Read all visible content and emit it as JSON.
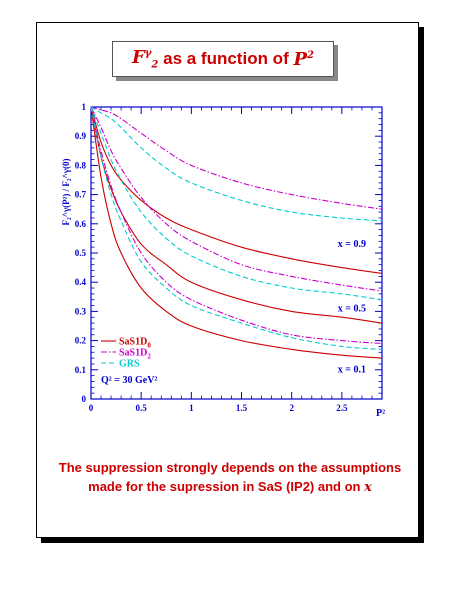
{
  "title": {
    "prefix": "F",
    "sup": "γ",
    "sub": "2",
    "middle": " as a function of ",
    "var": "P",
    "var_sup": "2"
  },
  "caption": {
    "text": "The suppression strongly depends on the assumptions made for the supression in SaS (IP2) and on ",
    "var": "x"
  },
  "colors": {
    "sas1d0": "#cc0000",
    "sas1d2": "#cc00cc",
    "grs": "#00cccc",
    "axis": "#0000cc",
    "label": "#0000cc"
  },
  "chart_data": {
    "type": "line",
    "xlabel": "P²",
    "ylabel": "F₂^γ(P²) / F₂^γ(0)",
    "xlim": [
      0,
      2.9
    ],
    "ylim": [
      0,
      1
    ],
    "xticks": [
      "0",
      "0.5",
      "1",
      "1.5",
      "2",
      "2.5"
    ],
    "yticks": [
      "0",
      "0.1",
      "0.2",
      "0.3",
      "0.4",
      "0.5",
      "0.6",
      "0.7",
      "0.8",
      "0.9",
      "1"
    ],
    "legend_position": "bottom-left",
    "legend": [
      {
        "label": "SaS1D",
        "sub": "0",
        "style": "solid",
        "color": "#cc0000"
      },
      {
        "label": "SaS1D",
        "sub": "2",
        "style": "dashdot",
        "color": "#cc00cc"
      },
      {
        "label": "GRS",
        "sub": "",
        "style": "dashed",
        "color": "#00cccc"
      }
    ],
    "annotation_q2": "Q² = 30 GeV²",
    "curve_labels": [
      {
        "text": "x = 0.9",
        "x": 2.6,
        "y": 0.52
      },
      {
        "text": "x = 0.5",
        "x": 2.6,
        "y": 0.3
      },
      {
        "text": "x = 0.1",
        "x": 2.6,
        "y": 0.09
      }
    ],
    "x": [
      0,
      0.1,
      0.2,
      0.3,
      0.5,
      0.75,
      1.0,
      1.5,
      2.0,
      2.5,
      2.9
    ],
    "series": [
      {
        "name": "SaS1D0",
        "group": "x = 0.9",
        "style": "solid",
        "values": [
          1.0,
          0.88,
          0.8,
          0.75,
          0.68,
          0.62,
          0.58,
          0.52,
          0.48,
          0.45,
          0.43
        ]
      },
      {
        "name": "SaS1D2",
        "group": "x = 0.9",
        "style": "dashdot",
        "values": [
          1.0,
          0.99,
          0.98,
          0.96,
          0.91,
          0.85,
          0.8,
          0.74,
          0.7,
          0.67,
          0.65
        ]
      },
      {
        "name": "GRS",
        "group": "x = 0.9",
        "style": "dashed",
        "values": [
          1.0,
          0.98,
          0.96,
          0.93,
          0.86,
          0.79,
          0.74,
          0.68,
          0.64,
          0.62,
          0.61
        ]
      },
      {
        "name": "SaS1D0",
        "group": "x = 0.5",
        "style": "solid",
        "values": [
          1.0,
          0.83,
          0.72,
          0.64,
          0.53,
          0.46,
          0.4,
          0.34,
          0.3,
          0.28,
          0.26
        ]
      },
      {
        "name": "SaS1D2",
        "group": "x = 0.5",
        "style": "dashdot",
        "values": [
          1.0,
          0.93,
          0.85,
          0.79,
          0.69,
          0.6,
          0.54,
          0.46,
          0.42,
          0.39,
          0.37
        ]
      },
      {
        "name": "GRS",
        "group": "x = 0.5",
        "style": "dashed",
        "values": [
          1.0,
          0.91,
          0.82,
          0.75,
          0.64,
          0.55,
          0.49,
          0.42,
          0.38,
          0.36,
          0.34
        ]
      },
      {
        "name": "SaS1D0",
        "group": "x = 0.1",
        "style": "solid",
        "values": [
          1.0,
          0.76,
          0.6,
          0.5,
          0.38,
          0.3,
          0.25,
          0.2,
          0.17,
          0.15,
          0.14
        ]
      },
      {
        "name": "SaS1D2",
        "group": "x = 0.1",
        "style": "dashdot",
        "values": [
          1.0,
          0.85,
          0.73,
          0.64,
          0.5,
          0.4,
          0.34,
          0.27,
          0.22,
          0.2,
          0.19
        ]
      },
      {
        "name": "GRS",
        "group": "x = 0.1",
        "style": "dashed",
        "values": [
          1.0,
          0.83,
          0.7,
          0.61,
          0.47,
          0.38,
          0.32,
          0.26,
          0.21,
          0.18,
          0.17
        ]
      }
    ]
  }
}
